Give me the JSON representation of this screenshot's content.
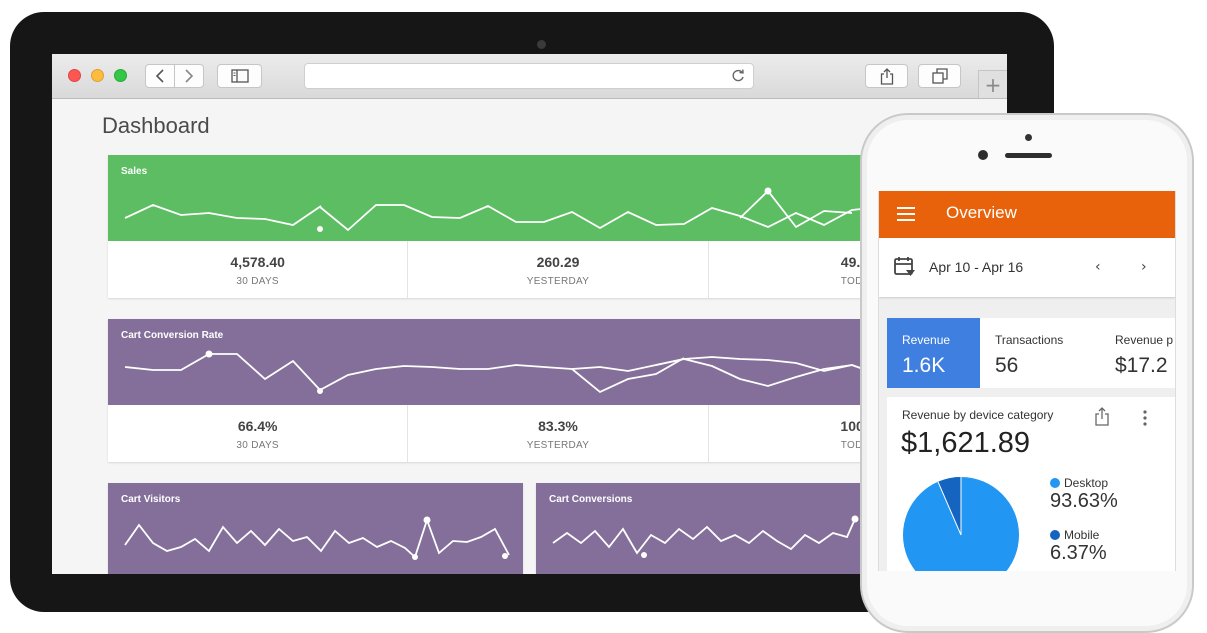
{
  "browser": {
    "url": ""
  },
  "dashboard": {
    "title": "Dashboard",
    "sales": {
      "title": "Sales",
      "stats": [
        {
          "value": "4,578.40",
          "label": "30 DAYS"
        },
        {
          "value": "260.29",
          "label": "YESTERDAY"
        },
        {
          "value": "49.95",
          "label": "TODAY"
        }
      ],
      "color": "#5cbd62"
    },
    "cart_conversion_rate": {
      "title": "Cart Conversion Rate",
      "stats": [
        {
          "value": "66.4%",
          "label": "30 DAYS"
        },
        {
          "value": "83.3%",
          "label": "YESTERDAY"
        },
        {
          "value": "100%",
          "label": "TODAY"
        }
      ],
      "color": "#846f9a"
    },
    "cart_visitors": {
      "title": "Cart Visitors",
      "color": "#846f9a"
    },
    "cart_conversions": {
      "title": "Cart Conversions",
      "color": "#846f9a"
    }
  },
  "mobile": {
    "title": "Overview",
    "date_range": "Apr 10 - Apr 16",
    "metrics": [
      {
        "label": "Revenue",
        "value": "1.6K",
        "selected": true
      },
      {
        "label": "Transactions",
        "value": "56",
        "selected": false
      },
      {
        "label": "Revenue p",
        "value": "$17.2",
        "selected": false
      }
    ],
    "device_card": {
      "title": "Revenue by device category",
      "total": "$1,621.89",
      "legend": [
        {
          "label": "Desktop",
          "value": "93.63%",
          "color": "#2196f3"
        },
        {
          "label": "Mobile",
          "value": "6.37%",
          "color": "#1565c0"
        }
      ]
    },
    "accent": "#e8620c",
    "selected_color": "#3f7fe0"
  }
}
